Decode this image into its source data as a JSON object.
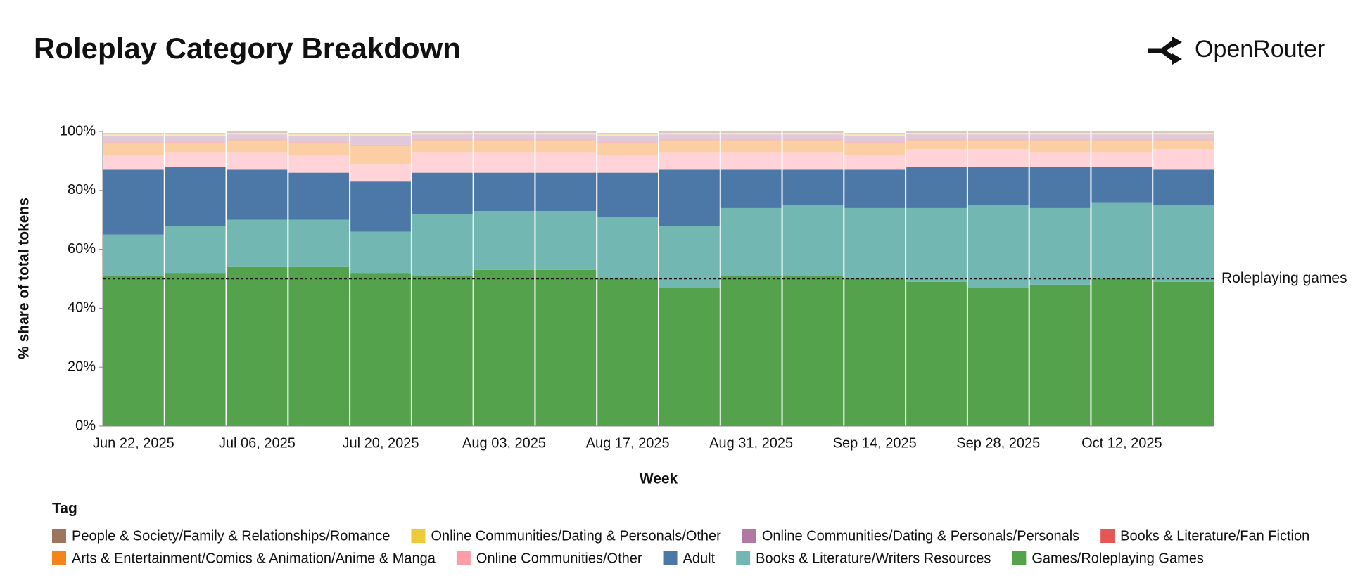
{
  "header": {
    "title": "Roleplay Category Breakdown",
    "brand": "OpenRouter"
  },
  "chart_data": {
    "type": "stacked_bar",
    "x_label": "Week",
    "y_label": "% share of total tokens",
    "categories": [
      "Jun 22, 2025",
      null,
      "Jul 06, 2025",
      null,
      "Jul 20, 2025",
      null,
      "Aug 03, 2025",
      null,
      "Aug 17, 2025",
      null,
      "Aug 31, 2025",
      null,
      "Sep 14, 2025",
      null,
      "Sep 28, 2025",
      null,
      "Oct 12, 2025",
      null
    ],
    "ylim": [
      0,
      100
    ],
    "yticks": [
      {
        "value": 0,
        "label": "0%"
      },
      {
        "value": 20,
        "label": "20%"
      },
      {
        "value": 40,
        "label": "40%"
      },
      {
        "value": 60,
        "label": "60%"
      },
      {
        "value": 80,
        "label": "80%"
      },
      {
        "value": 100,
        "label": "100%"
      }
    ],
    "reference_line": {
      "value": 50,
      "label": "Roleplaying games"
    },
    "legend_title": "Tag",
    "series": [
      {
        "name": "People & Society/Family & Relationships/Romance",
        "color": "#9d755d",
        "opacity": 0.4,
        "values": [
          0.5,
          0.5,
          0.5,
          0.5,
          0.5,
          0.5,
          0.5,
          0.5,
          0.5,
          0.5,
          0.5,
          0.5,
          0.5,
          0.5,
          0.5,
          0.5,
          0.5,
          0.5
        ]
      },
      {
        "name": "Online Communities/Dating & Personals/Other",
        "color": "#eeca3b",
        "opacity": 0.4,
        "values": [
          0.5,
          0.5,
          0.5,
          0.5,
          0.5,
          0.5,
          0.5,
          0.5,
          0.5,
          0.5,
          0.5,
          0.5,
          0.5,
          0.5,
          0.5,
          0.5,
          0.5,
          0.5
        ]
      },
      {
        "name": "Online Communities/Dating & Personals/Personals",
        "color": "#b279a2",
        "opacity": 0.4,
        "values": [
          2,
          2,
          1.5,
          2,
          3,
          1.5,
          1.5,
          1.5,
          2,
          1.5,
          1.5,
          1.5,
          2,
          1.5,
          1.5,
          1.5,
          1.5,
          1.5
        ]
      },
      {
        "name": "Books & Literature/Fan Fiction",
        "color": "#e45756",
        "opacity": 0.4,
        "values": [
          0.5,
          0.5,
          0.5,
          0.5,
          0.5,
          0.5,
          0.5,
          0.5,
          0.5,
          0.5,
          0.5,
          0.5,
          0.5,
          0.5,
          0.5,
          0.5,
          0.5,
          0.5
        ]
      },
      {
        "name": "Arts & Entertainment/Comics & Animation/Anime & Manga",
        "color": "#f58518",
        "opacity": 0.4,
        "values": [
          4,
          3,
          4,
          4,
          6,
          4,
          4,
          4,
          4,
          4,
          4,
          4,
          4,
          3,
          3,
          4,
          4,
          3
        ]
      },
      {
        "name": "Online Communities/Other",
        "color": "#ff9da6",
        "opacity": 0.45,
        "values": [
          5,
          5,
          6,
          6,
          6,
          7,
          7,
          7,
          6,
          6,
          6,
          6,
          5,
          6,
          6,
          5,
          5,
          7
        ]
      },
      {
        "name": "Adult",
        "color": "#4c78a8",
        "opacity": 1,
        "values": [
          22,
          20,
          17,
          16,
          17,
          14,
          13,
          13,
          15,
          19,
          13,
          12,
          13,
          14,
          13,
          14,
          12,
          12
        ]
      },
      {
        "name": "Books & Literature/Writers Resources",
        "color": "#72b7b2",
        "opacity": 1,
        "values": [
          14,
          16,
          16,
          16,
          14,
          21,
          20,
          20,
          21,
          21,
          23,
          24,
          24,
          25,
          28,
          26,
          26,
          26
        ]
      },
      {
        "name": "Games/Roleplaying Games",
        "color": "#54a24b",
        "opacity": 1,
        "values": [
          51,
          52,
          54,
          54,
          52,
          51,
          53,
          53,
          50,
          47,
          51,
          51,
          50,
          49,
          47,
          48,
          50,
          49
        ]
      }
    ]
  }
}
